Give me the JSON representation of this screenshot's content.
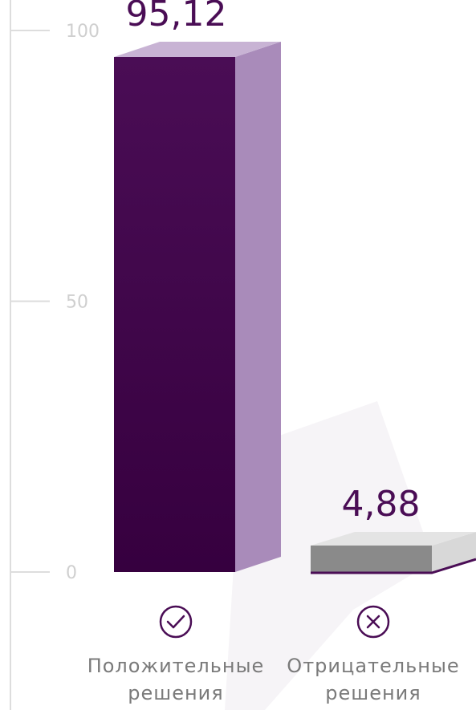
{
  "chart_data": {
    "type": "bar",
    "categories": [
      {
        "line1": "Положительные",
        "line2": "решения"
      },
      {
        "line1": "Отрицательные",
        "line2": "решения"
      }
    ],
    "values": [
      95.12,
      4.88
    ],
    "value_labels": [
      "95,12",
      "4,88"
    ],
    "ylim": [
      0,
      100
    ],
    "yticks": [
      {
        "value": 0,
        "label": "0"
      },
      {
        "value": 50,
        "label": "50"
      },
      {
        "value": 100,
        "label": "100"
      }
    ],
    "grid": false,
    "legend": "none",
    "category_icons": [
      "check-circle-icon",
      "x-circle-icon"
    ]
  },
  "colors": {
    "bar1_front": "#36003f",
    "bar1_front_top": "#4a0d55",
    "bar1_side": "#a98bba",
    "bar1_top": "#c8b3d4",
    "bar2_front": "#8a8a8a",
    "bar2_side": "#d8d8d8",
    "bar2_top": "#e4e4e4",
    "bar2_base": "#4a0d55",
    "axis": "#dddddd",
    "value_text": "#4a0d55",
    "icon": "#4a0d55",
    "label_text": "#7a7a7a"
  }
}
